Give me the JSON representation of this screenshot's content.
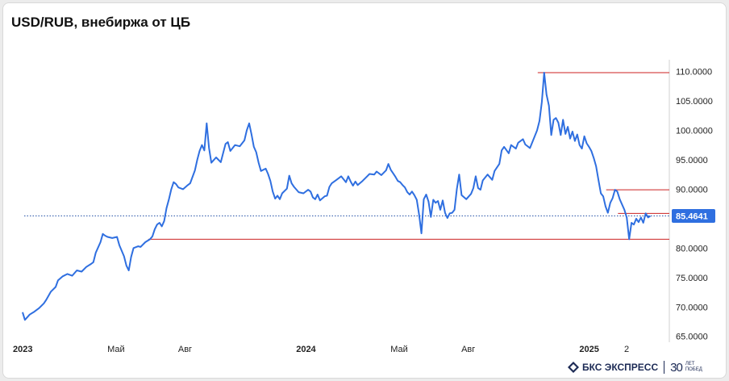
{
  "title": "USD/RUB, внебиржа от ЦБ",
  "chart_data": {
    "type": "line",
    "title": "USD/RUB, внебиржа от ЦБ",
    "xlabel": "",
    "ylabel": "",
    "ylim": [
      64,
      112
    ],
    "xlim": [
      0,
      27.3
    ],
    "y_ticks": [
      "65.0000",
      "70.0000",
      "75.0000",
      "80.0000",
      "85.0000",
      "90.0000",
      "95.0000",
      "100.0000",
      "105.0000",
      "110.0000"
    ],
    "x_ticks": [
      {
        "label": "2023",
        "t": 0,
        "bold": true
      },
      {
        "label": "Май",
        "t": 4,
        "bold": false
      },
      {
        "label": "Авг",
        "t": 7,
        "bold": false
      },
      {
        "label": "2024",
        "t": 12,
        "bold": true
      },
      {
        "label": "Май",
        "t": 16,
        "bold": false
      },
      {
        "label": "Авг",
        "t": 19,
        "bold": false
      },
      {
        "label": "2025",
        "t": 24,
        "bold": true
      },
      {
        "label": "2",
        "t": 25.9,
        "bold": false
      }
    ],
    "last_value": "85.4641",
    "last_value_level": 85.4641,
    "series": [
      {
        "color": "#2f6fe0",
        "points": [
          [
            0.0,
            69.1
          ],
          [
            0.1,
            67.8
          ],
          [
            0.3,
            68.7
          ],
          [
            0.5,
            69.2
          ],
          [
            0.7,
            69.8
          ],
          [
            0.9,
            70.6
          ],
          [
            1.0,
            71.2
          ],
          [
            1.2,
            72.6
          ],
          [
            1.4,
            73.4
          ],
          [
            1.5,
            74.5
          ],
          [
            1.7,
            75.2
          ],
          [
            1.9,
            75.6
          ],
          [
            2.1,
            75.3
          ],
          [
            2.3,
            76.2
          ],
          [
            2.5,
            76.0
          ],
          [
            2.7,
            76.8
          ],
          [
            2.9,
            77.3
          ],
          [
            3.0,
            77.6
          ],
          [
            3.1,
            79.2
          ],
          [
            3.3,
            81.0
          ],
          [
            3.4,
            82.4
          ],
          [
            3.5,
            82.1
          ],
          [
            3.6,
            81.9
          ],
          [
            3.8,
            81.7
          ],
          [
            4.0,
            81.9
          ],
          [
            4.1,
            80.5
          ],
          [
            4.3,
            78.6
          ],
          [
            4.4,
            77.0
          ],
          [
            4.5,
            76.2
          ],
          [
            4.6,
            78.5
          ],
          [
            4.7,
            80.0
          ],
          [
            4.9,
            80.3
          ],
          [
            5.0,
            80.2
          ],
          [
            5.2,
            81.0
          ],
          [
            5.4,
            81.5
          ],
          [
            5.5,
            82.0
          ],
          [
            5.6,
            83.2
          ],
          [
            5.7,
            84.0
          ],
          [
            5.8,
            84.3
          ],
          [
            5.9,
            83.7
          ],
          [
            6.0,
            84.6
          ],
          [
            6.1,
            86.8
          ],
          [
            6.2,
            88.3
          ],
          [
            6.3,
            90.0
          ],
          [
            6.4,
            91.2
          ],
          [
            6.5,
            90.9
          ],
          [
            6.6,
            90.3
          ],
          [
            6.8,
            90.0
          ],
          [
            7.0,
            90.7
          ],
          [
            7.1,
            91.0
          ],
          [
            7.3,
            93.2
          ],
          [
            7.4,
            95.0
          ],
          [
            7.5,
            96.5
          ],
          [
            7.6,
            97.5
          ],
          [
            7.7,
            96.6
          ],
          [
            7.8,
            101.2
          ],
          [
            7.9,
            97.0
          ],
          [
            8.0,
            94.5
          ],
          [
            8.2,
            95.4
          ],
          [
            8.4,
            94.6
          ],
          [
            8.5,
            96.2
          ],
          [
            8.6,
            97.7
          ],
          [
            8.7,
            98.0
          ],
          [
            8.8,
            96.5
          ],
          [
            9.0,
            97.5
          ],
          [
            9.2,
            97.3
          ],
          [
            9.4,
            98.3
          ],
          [
            9.5,
            100.0
          ],
          [
            9.6,
            101.2
          ],
          [
            9.7,
            99.3
          ],
          [
            9.8,
            97.2
          ],
          [
            9.9,
            96.3
          ],
          [
            10.0,
            94.5
          ],
          [
            10.1,
            93.1
          ],
          [
            10.3,
            93.5
          ],
          [
            10.4,
            92.6
          ],
          [
            10.5,
            91.4
          ],
          [
            10.6,
            89.6
          ],
          [
            10.7,
            88.4
          ],
          [
            10.8,
            88.9
          ],
          [
            10.9,
            88.3
          ],
          [
            11.0,
            89.3
          ],
          [
            11.2,
            90.1
          ],
          [
            11.3,
            92.3
          ],
          [
            11.4,
            91.0
          ],
          [
            11.5,
            90.4
          ],
          [
            11.7,
            89.5
          ],
          [
            11.9,
            89.3
          ],
          [
            12.1,
            89.9
          ],
          [
            12.2,
            89.6
          ],
          [
            12.3,
            88.6
          ],
          [
            12.4,
            88.3
          ],
          [
            12.5,
            89.1
          ],
          [
            12.6,
            88.1
          ],
          [
            12.8,
            88.8
          ],
          [
            12.9,
            88.9
          ],
          [
            13.0,
            90.4
          ],
          [
            13.1,
            91.0
          ],
          [
            13.3,
            91.6
          ],
          [
            13.5,
            92.2
          ],
          [
            13.7,
            91.2
          ],
          [
            13.8,
            92.2
          ],
          [
            13.9,
            91.3
          ],
          [
            14.0,
            90.6
          ],
          [
            14.1,
            91.3
          ],
          [
            14.2,
            90.7
          ],
          [
            14.4,
            91.4
          ],
          [
            14.6,
            92.2
          ],
          [
            14.7,
            92.6
          ],
          [
            14.9,
            92.5
          ],
          [
            15.0,
            93.0
          ],
          [
            15.2,
            92.4
          ],
          [
            15.4,
            93.2
          ],
          [
            15.5,
            94.3
          ],
          [
            15.6,
            93.3
          ],
          [
            15.7,
            92.7
          ],
          [
            15.8,
            92.1
          ],
          [
            15.9,
            91.4
          ],
          [
            16.0,
            91.2
          ],
          [
            16.1,
            90.7
          ],
          [
            16.2,
            90.3
          ],
          [
            16.3,
            89.5
          ],
          [
            16.4,
            89.1
          ],
          [
            16.5,
            89.6
          ],
          [
            16.6,
            89.0
          ],
          [
            16.7,
            88.2
          ],
          [
            16.8,
            85.7
          ],
          [
            16.9,
            82.5
          ],
          [
            17.0,
            88.3
          ],
          [
            17.1,
            89.1
          ],
          [
            17.2,
            87.9
          ],
          [
            17.3,
            85.3
          ],
          [
            17.4,
            88.2
          ],
          [
            17.5,
            87.7
          ],
          [
            17.6,
            88.0
          ],
          [
            17.7,
            86.5
          ],
          [
            17.8,
            88.1
          ],
          [
            17.9,
            86.0
          ],
          [
            18.0,
            85.1
          ],
          [
            18.1,
            85.9
          ],
          [
            18.2,
            86.0
          ],
          [
            18.3,
            86.5
          ],
          [
            18.4,
            90.0
          ],
          [
            18.5,
            92.5
          ],
          [
            18.6,
            89.0
          ],
          [
            18.8,
            88.3
          ],
          [
            19.0,
            89.2
          ],
          [
            19.1,
            90.2
          ],
          [
            19.2,
            92.2
          ],
          [
            19.3,
            90.2
          ],
          [
            19.4,
            89.9
          ],
          [
            19.5,
            91.5
          ],
          [
            19.7,
            92.5
          ],
          [
            19.9,
            91.6
          ],
          [
            20.0,
            93.1
          ],
          [
            20.2,
            94.3
          ],
          [
            20.3,
            96.6
          ],
          [
            20.4,
            97.2
          ],
          [
            20.6,
            96.1
          ],
          [
            20.7,
            97.5
          ],
          [
            20.9,
            96.9
          ],
          [
            21.0,
            97.9
          ],
          [
            21.2,
            98.5
          ],
          [
            21.3,
            97.6
          ],
          [
            21.5,
            97.0
          ],
          [
            21.7,
            99.0
          ],
          [
            21.8,
            100.0
          ],
          [
            21.9,
            101.6
          ],
          [
            22.0,
            104.8
          ],
          [
            22.1,
            109.8
          ],
          [
            22.2,
            106.1
          ],
          [
            22.3,
            104.2
          ],
          [
            22.4,
            99.2
          ],
          [
            22.5,
            101.8
          ],
          [
            22.6,
            102.1
          ],
          [
            22.7,
            101.3
          ],
          [
            22.8,
            99.2
          ],
          [
            22.9,
            101.8
          ],
          [
            23.0,
            99.4
          ],
          [
            23.1,
            100.6
          ],
          [
            23.2,
            98.6
          ],
          [
            23.3,
            99.8
          ],
          [
            23.4,
            98.2
          ],
          [
            23.5,
            99.3
          ],
          [
            23.6,
            97.5
          ],
          [
            23.7,
            96.9
          ],
          [
            23.8,
            99.0
          ],
          [
            23.9,
            97.8
          ],
          [
            24.0,
            97.2
          ],
          [
            24.1,
            96.5
          ],
          [
            24.2,
            95.3
          ],
          [
            24.3,
            93.9
          ],
          [
            24.4,
            91.6
          ],
          [
            24.5,
            89.3
          ],
          [
            24.6,
            88.8
          ],
          [
            24.7,
            87.1
          ],
          [
            24.8,
            86.0
          ],
          [
            24.9,
            87.7
          ],
          [
            25.0,
            88.5
          ],
          [
            25.1,
            89.9
          ],
          [
            25.2,
            89.6
          ],
          [
            25.3,
            88.3
          ],
          [
            25.4,
            87.4
          ],
          [
            25.5,
            86.5
          ],
          [
            25.6,
            85.2
          ],
          [
            25.7,
            81.5
          ],
          [
            25.8,
            84.3
          ],
          [
            25.9,
            84.0
          ],
          [
            26.0,
            85.0
          ],
          [
            26.1,
            84.4
          ],
          [
            26.2,
            85.2
          ],
          [
            26.3,
            84.3
          ],
          [
            26.4,
            85.9
          ],
          [
            26.5,
            85.2
          ],
          [
            26.6,
            85.46
          ]
        ]
      }
    ],
    "reference_lines": [
      {
        "value": 109.8,
        "t_start": 22.1,
        "color": "#cc2222"
      },
      {
        "value": 89.9,
        "t_start": 25.0,
        "color": "#cc2222"
      },
      {
        "value": 85.9,
        "t_start": 25.5,
        "color": "#cc2222"
      },
      {
        "value": 81.5,
        "t_start": 5.6,
        "color": "#cc2222"
      }
    ]
  },
  "logo": {
    "brand": "БКС ЭКСПРЕСС",
    "anniversary": "30",
    "small_line1": "ЛЕТ",
    "small_line2": "ПОБЕД"
  }
}
